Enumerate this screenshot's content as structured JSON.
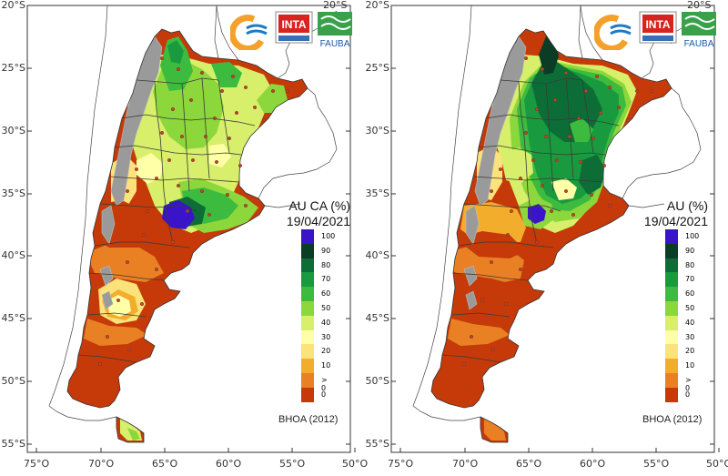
{
  "lat_labels": [
    "20°S",
    "25°S",
    "30°S",
    "35°S",
    "40°S",
    "45°S",
    "50°S",
    "55°S"
  ],
  "lon_labels": [
    "75°O",
    "70°O",
    "65°O",
    "60°O",
    "55°O",
    "50°O"
  ],
  "legend_classes": [
    {
      "label": "100",
      "color": "#3a14c8"
    },
    {
      "label": "90",
      "color": "#0b3d26"
    },
    {
      "label": "80",
      "color": "#0c6e36"
    },
    {
      "label": "70",
      "color": "#1a9a3e"
    },
    {
      "label": "60",
      "color": "#3dbb3f"
    },
    {
      "label": "50",
      "color": "#8cd73b"
    },
    {
      "label": "40",
      "color": "#d7ef6b"
    },
    {
      "label": "30",
      "color": "#ffffa8"
    },
    {
      "label": "20",
      "color": "#fbe27a"
    },
    {
      "label": "10",
      "color": "#f3ad2d"
    },
    {
      "label": "> 0",
      "color": "#e98124"
    },
    {
      "label": "0",
      "color": "#c53a08"
    }
  ],
  "logos": {
    "inta": "INTA",
    "fauba": "FAUBA"
  },
  "footnote": "BHOA (2012)",
  "panels": [
    {
      "title": "AU CA (%)",
      "date": "19/04/2021",
      "mode": "ca"
    },
    {
      "title": "AU (%)",
      "date": "19/04/2021",
      "mode": "au"
    }
  ]
}
